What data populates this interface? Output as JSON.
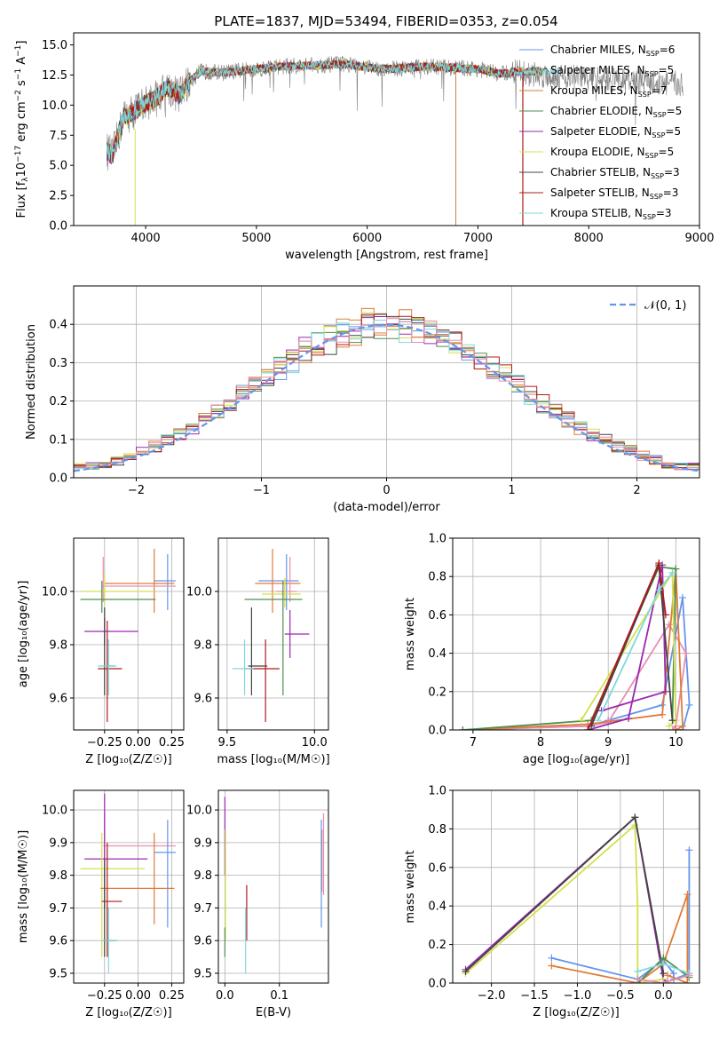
{
  "colors": {
    "c1": "#6495ed",
    "c2": "#e07b39",
    "c3": "#d2823c",
    "c4": "#4f8f4f",
    "c5": "#9b27b0",
    "c6": "#d4e04b",
    "c7": "#444444",
    "c8": "#b11b1b",
    "c9": "#7fd8dc",
    "pink": "#e88fb0",
    "gray": "#7f7f7f"
  },
  "chart_data": [
    {
      "id": "spectrum",
      "type": "line",
      "title": "PLATE=1837, MJD=53494, FIBERID=0353, z=0.054",
      "xlabel": "wavelength [Angstrom, rest frame]",
      "ylabel": "Flux [f",
      "ylabel_parts": {
        "a": "Flux [f",
        "b": "λ",
        "c": "10",
        "d": "−17",
        "e": " erg cm",
        "f": "−2",
        "g": " s",
        "h": "−1",
        "i": " A",
        "j": "−1",
        "k": "]"
      },
      "xlim": [
        3350,
        9000
      ],
      "ylim": [
        0,
        16
      ],
      "xticks": [
        "4000",
        "5000",
        "6000",
        "7000",
        "8000",
        "9000"
      ],
      "yticks": [
        "0.0",
        "2.5",
        "5.0",
        "7.5",
        "10.0",
        "12.5",
        "15.0"
      ],
      "envelope_x": [
        3650,
        3700,
        3800,
        3900,
        4000,
        4100,
        4200,
        4300,
        4400,
        4500,
        4700,
        5000,
        5200,
        5500,
        5800,
        6000,
        6200,
        6500,
        6800,
        7000,
        7200,
        7400
      ],
      "envelope_y": [
        6.2,
        5.8,
        9.0,
        9.5,
        10.2,
        10.6,
        11.5,
        10.8,
        12.0,
        12.8,
        12.7,
        13.0,
        13.2,
        13.3,
        13.4,
        13.1,
        13.0,
        13.2,
        13.1,
        13.0,
        12.6,
        12.8
      ],
      "legend": [
        {
          "label": "Chabrier MILES, N",
          "sub": "SSP",
          "suffix": "=6"
        },
        {
          "label": "Salpeter MILES, N",
          "sub": "SSP",
          "suffix": "=5"
        },
        {
          "label": "Kroupa MILES, N",
          "sub": "SSP",
          "suffix": "=7"
        },
        {
          "label": "Chabrier ELODIE, N",
          "sub": "SSP",
          "suffix": "=5"
        },
        {
          "label": "Salpeter ELODIE, N",
          "sub": "SSP",
          "suffix": "=5"
        },
        {
          "label": "Kroupa ELODIE, N",
          "sub": "SSP",
          "suffix": "=5"
        },
        {
          "label": "Chabrier STELIB, N",
          "sub": "SSP",
          "suffix": "=3"
        },
        {
          "label": "Salpeter STELIB, N",
          "sub": "SSP",
          "suffix": "=3"
        },
        {
          "label": "Kroupa STELIB, N",
          "sub": "SSP",
          "suffix": "=3"
        }
      ]
    },
    {
      "id": "residuals",
      "type": "line",
      "xlabel": "(data-model)/error",
      "ylabel": "Normed distribution",
      "xlim": [
        -2.5,
        2.5
      ],
      "ylim": [
        0,
        0.5
      ],
      "xticks": [
        "−2",
        "−1",
        "0",
        "1",
        "2"
      ],
      "yticks": [
        "0.0",
        "0.1",
        "0.2",
        "0.3",
        "0.4"
      ],
      "legend": "𝒩(0, 1)"
    },
    {
      "id": "age-vs-z",
      "type": "scatter",
      "xlabel": "Z [log₁₀(Z/Z☉)]",
      "ylabel": "age  [log₁₀(age/yr)]",
      "xlim": [
        -0.48,
        0.34
      ],
      "ylim": [
        9.48,
        10.2
      ],
      "xticks": [
        "−0.25",
        "0.00",
        "0.25"
      ],
      "yticks": [
        "9.6",
        "9.8",
        "10.0"
      ],
      "points": [
        {
          "c": "c1",
          "x": 0.22,
          "y": 10.04,
          "xe": [
            0.12,
            0.28
          ],
          "ye": [
            9.93,
            10.14
          ]
        },
        {
          "c": "c2",
          "x": 0.12,
          "y": 10.03,
          "xe": [
            -0.25,
            0.27
          ],
          "ye": [
            9.92,
            10.16
          ]
        },
        {
          "c": "pink",
          "x": -0.26,
          "y": 10.02,
          "xe": [
            -0.27,
            0.28
          ],
          "ye": [
            9.96,
            10.13
          ]
        },
        {
          "c": "c6",
          "x": -0.25,
          "y": 10.0,
          "xe": [
            -0.42,
            0.12
          ],
          "ye": [
            9.95,
            10.07
          ]
        },
        {
          "c": "c4",
          "x": -0.27,
          "y": 9.97,
          "xe": [
            -0.43,
            0.13
          ],
          "ye": [
            9.92,
            10.04
          ]
        },
        {
          "c": "c5",
          "x": -0.25,
          "y": 9.85,
          "xe": [
            -0.4,
            0.0
          ],
          "ye": [
            9.8,
            9.9
          ]
        },
        {
          "c": "c7",
          "x": -0.25,
          "y": 9.72,
          "xe": [
            -0.26,
            -0.18
          ],
          "ye": [
            9.61,
            9.94
          ]
        },
        {
          "c": "c8",
          "x": -0.23,
          "y": 9.71,
          "xe": [
            -0.3,
            -0.12
          ],
          "ye": [
            9.51,
            9.89
          ]
        },
        {
          "c": "c9",
          "x": -0.22,
          "y": 9.72,
          "xe": [
            -0.3,
            -0.16
          ],
          "ye": [
            9.61,
            9.82
          ]
        }
      ]
    },
    {
      "id": "age-vs-mass",
      "type": "scatter",
      "xlabel": "mass [log₁₀(M/M☉)]",
      "ylabel": "",
      "xlim": [
        9.45,
        10.08
      ],
      "ylim": [
        9.48,
        10.2
      ],
      "xticks": [
        "9.5",
        "10.0"
      ],
      "yticks": [
        "9.6",
        "9.8",
        "10.0"
      ],
      "points": [
        {
          "c": "c1",
          "x": 9.84,
          "y": 10.04,
          "xe": [
            9.68,
            9.91
          ],
          "ye": [
            9.93,
            10.14
          ]
        },
        {
          "c": "c2",
          "x": 9.76,
          "y": 10.03,
          "xe": [
            9.66,
            9.92
          ],
          "ye": [
            9.92,
            10.16
          ]
        },
        {
          "c": "pink",
          "x": 9.86,
          "y": 10.0,
          "xe": [
            9.78,
            9.9
          ],
          "ye": [
            9.96,
            10.13
          ]
        },
        {
          "c": "c6",
          "x": 9.83,
          "y": 9.99,
          "xe": [
            9.7,
            9.92
          ],
          "ye": [
            9.94,
            10.05
          ]
        },
        {
          "c": "c4",
          "x": 9.82,
          "y": 9.97,
          "xe": [
            9.6,
            9.93
          ],
          "ye": [
            9.61,
            10.04
          ]
        },
        {
          "c": "c5",
          "x": 9.86,
          "y": 9.84,
          "xe": [
            9.83,
            9.97
          ],
          "ye": [
            9.75,
            9.93
          ]
        },
        {
          "c": "c7",
          "x": 9.64,
          "y": 9.72,
          "xe": [
            9.62,
            9.73
          ],
          "ye": [
            9.61,
            9.94
          ]
        },
        {
          "c": "c8",
          "x": 9.72,
          "y": 9.71,
          "xe": [
            9.6,
            9.8
          ],
          "ye": [
            9.51,
            9.82
          ]
        },
        {
          "c": "c9",
          "x": 9.6,
          "y": 9.71,
          "xe": [
            9.53,
            9.65
          ],
          "ye": [
            9.61,
            9.82
          ]
        }
      ]
    },
    {
      "id": "mass-weight-vs-age",
      "type": "line",
      "xlabel": "age  [log₁₀(age/yr)]",
      "ylabel": "mass weight",
      "xlim": [
        6.7,
        10.35
      ],
      "ylim": [
        0,
        1
      ],
      "xticks": [
        "7",
        "8",
        "9",
        "10"
      ],
      "yticks": [
        "0.0",
        "0.2",
        "0.4",
        "0.6",
        "0.8",
        "1.0"
      ],
      "series": [
        {
          "c": "c1",
          "x": [
            6.85,
            8.7,
            9.0,
            9.8,
            10.1,
            10.2,
            10.1,
            9.95
          ],
          "y": [
            0.0,
            0.02,
            0.05,
            0.13,
            0.69,
            0.13,
            0.0,
            0.0
          ]
        },
        {
          "c": "pink",
          "x": [
            6.85,
            8.7,
            9.0,
            9.9,
            10.15,
            10.0,
            9.95
          ],
          "y": [
            0.0,
            0.02,
            0.04,
            0.55,
            0.4,
            0.02,
            0.0
          ]
        },
        {
          "c": "c2",
          "x": [
            6.85,
            8.7,
            9.8,
            10.0,
            10.1,
            10.0
          ],
          "y": [
            0.0,
            0.03,
            0.08,
            0.84,
            0.02,
            0.0
          ]
        },
        {
          "c": "c4",
          "x": [
            6.85,
            8.75,
            9.75,
            10.0,
            9.95
          ],
          "y": [
            0.0,
            0.05,
            0.85,
            0.84,
            0.05
          ]
        },
        {
          "c": "c5",
          "x": [
            8.7,
            9.3,
            9.8,
            9.85,
            8.9
          ],
          "y": [
            0.0,
            0.06,
            0.86,
            0.2,
            0.1
          ]
        },
        {
          "c": "c6",
          "x": [
            8.6,
            9.95,
            10.0,
            9.9
          ],
          "y": [
            0.05,
            0.82,
            0.05,
            0.02
          ]
        },
        {
          "c": "c7",
          "x": [
            8.75,
            9.75,
            9.95
          ],
          "y": [
            0.02,
            0.86,
            0.05
          ]
        },
        {
          "c": "c8",
          "x": [
            8.7,
            9.75,
            9.85
          ],
          "y": [
            0.0,
            0.87,
            0.6
          ]
        },
        {
          "c": "c9",
          "x": [
            8.85,
            9.75,
            9.95
          ],
          "y": [
            0.05,
            0.73,
            0.82
          ]
        }
      ]
    },
    {
      "id": "mass-vs-z",
      "type": "scatter",
      "xlabel": "Z [log₁₀(Z/Z☉)]",
      "ylabel": "mass [log₁₀(M/M☉)]",
      "xlim": [
        -0.48,
        0.34
      ],
      "ylim": [
        9.47,
        10.06
      ],
      "xticks": [
        "−0.25",
        "0.00",
        "0.25"
      ],
      "yticks": [
        "9.5",
        "9.6",
        "9.7",
        "9.8",
        "9.9",
        "10.0"
      ],
      "points": [
        {
          "c": "pink",
          "x": -0.25,
          "y": 9.89,
          "xe": [
            -0.26,
            0.28
          ],
          "ye": [
            9.85,
            9.99
          ]
        },
        {
          "c": "c1",
          "x": 0.22,
          "y": 9.87,
          "xe": [
            0.12,
            0.28
          ],
          "ye": [
            9.64,
            9.97
          ]
        },
        {
          "c": "c5",
          "x": -0.25,
          "y": 9.85,
          "xe": [
            -0.4,
            0.07
          ],
          "ye": [
            9.7,
            10.05
          ]
        },
        {
          "c": "c6",
          "x": -0.27,
          "y": 9.82,
          "xe": [
            -0.43,
            0.05
          ],
          "ye": [
            9.55,
            9.93
          ]
        },
        {
          "c": "c2",
          "x": 0.12,
          "y": 9.76,
          "xe": [
            -0.28,
            0.27
          ],
          "ye": [
            9.65,
            9.93
          ]
        },
        {
          "c": "c8",
          "x": -0.23,
          "y": 9.72,
          "xe": [
            -0.27,
            -0.12
          ],
          "ye": [
            9.55,
            9.9
          ]
        },
        {
          "c": "c7",
          "x": -0.25,
          "y": 9.6,
          "xe": [
            -0.26,
            -0.16
          ],
          "ye": [
            9.55,
            9.85
          ]
        },
        {
          "c": "c9",
          "x": -0.22,
          "y": 9.6,
          "xe": [
            -0.27,
            -0.16
          ],
          "ye": [
            9.5,
            9.7
          ]
        }
      ]
    },
    {
      "id": "mass-vs-ebv",
      "type": "scatter",
      "xlabel": "E(B-V)",
      "ylabel": "",
      "xlim": [
        -0.012,
        0.19
      ],
      "ylim": [
        9.47,
        10.06
      ],
      "xticks": [
        "0.0",
        "0.1"
      ],
      "yticks": [
        "9.5",
        "9.6",
        "9.7",
        "9.8",
        "9.9",
        "10.0"
      ],
      "points": [
        {
          "c": "c5",
          "x": 0.0,
          "y": 9.9,
          "xe": [
            0.0,
            0.0
          ],
          "ye": [
            9.8,
            10.04
          ]
        },
        {
          "c": "c6",
          "x": 0.001,
          "y": 9.8,
          "xe": [
            0.001,
            0.001
          ],
          "ye": [
            9.6,
            9.94
          ]
        },
        {
          "c": "c4",
          "x": 0.0,
          "y": 9.6,
          "xe": [
            0.0,
            0.0
          ],
          "ye": [
            9.55,
            9.64
          ]
        },
        {
          "c": "c8",
          "x": 0.04,
          "y": 9.72,
          "xe": [
            0.04,
            0.04
          ],
          "ye": [
            9.6,
            9.77
          ]
        },
        {
          "c": "c9",
          "x": 0.038,
          "y": 9.6,
          "xe": [
            0.038,
            0.038
          ],
          "ye": [
            9.5,
            9.7
          ]
        },
        {
          "c": "pink",
          "x": 0.181,
          "y": 9.9,
          "xe": [
            0.181,
            0.181
          ],
          "ye": [
            9.74,
            9.99
          ]
        },
        {
          "c": "c2",
          "x": 0.178,
          "y": 9.85,
          "xe": [
            0.178,
            0.178
          ],
          "ye": [
            9.75,
            9.94
          ]
        },
        {
          "c": "c1",
          "x": 0.177,
          "y": 9.8,
          "xe": [
            0.177,
            0.177
          ],
          "ye": [
            9.64,
            9.97
          ]
        }
      ]
    },
    {
      "id": "mass-weight-vs-z",
      "type": "line",
      "xlabel": "Z [log₁₀(Z/Z☉)]",
      "ylabel": "mass weight",
      "xlim": [
        -2.45,
        0.42
      ],
      "ylim": [
        0,
        1
      ],
      "xticks": [
        "−2.0",
        "−1.5",
        "−1.0",
        "−0.5",
        "0.0"
      ],
      "yticks": [
        "0.0",
        "0.2",
        "0.4",
        "0.6",
        "0.8",
        "1.0"
      ],
      "series": [
        {
          "c": "c5",
          "x": [
            -2.3,
            -0.33,
            0.0,
            0.05
          ],
          "y": [
            0.07,
            0.86,
            0.02,
            0.0
          ]
        },
        {
          "c": "c6",
          "x": [
            -2.3,
            -0.33,
            -0.3,
            -0.3,
            0.0
          ],
          "y": [
            0.05,
            0.82,
            0.4,
            0.0,
            0.02
          ]
        },
        {
          "c": "c7",
          "x": [
            -2.3,
            -0.33,
            0.0
          ],
          "y": [
            0.06,
            0.86,
            0.05
          ]
        },
        {
          "c": "c1",
          "x": [
            -1.3,
            -0.3,
            0.0,
            0.12,
            0.12,
            0.3,
            0.3
          ],
          "y": [
            0.13,
            0.02,
            0.12,
            0.05,
            0.02,
            0.05,
            0.69
          ]
        },
        {
          "c": "c2",
          "x": [
            -1.3,
            -0.3,
            0.0,
            0.28,
            0.28,
            0.05
          ],
          "y": [
            0.09,
            0.0,
            0.1,
            0.46,
            0.0,
            0.04
          ]
        },
        {
          "c": "c4",
          "x": [
            -0.3,
            0.0,
            0.3
          ],
          "y": [
            0.0,
            0.13,
            0.03
          ]
        },
        {
          "c": "c9",
          "x": [
            -0.3,
            0.0,
            0.3
          ],
          "y": [
            0.06,
            0.1,
            0.05
          ]
        },
        {
          "c": "pink",
          "x": [
            -0.3,
            0.0,
            0.3
          ],
          "y": [
            0.02,
            0.0,
            0.04
          ]
        }
      ]
    }
  ]
}
